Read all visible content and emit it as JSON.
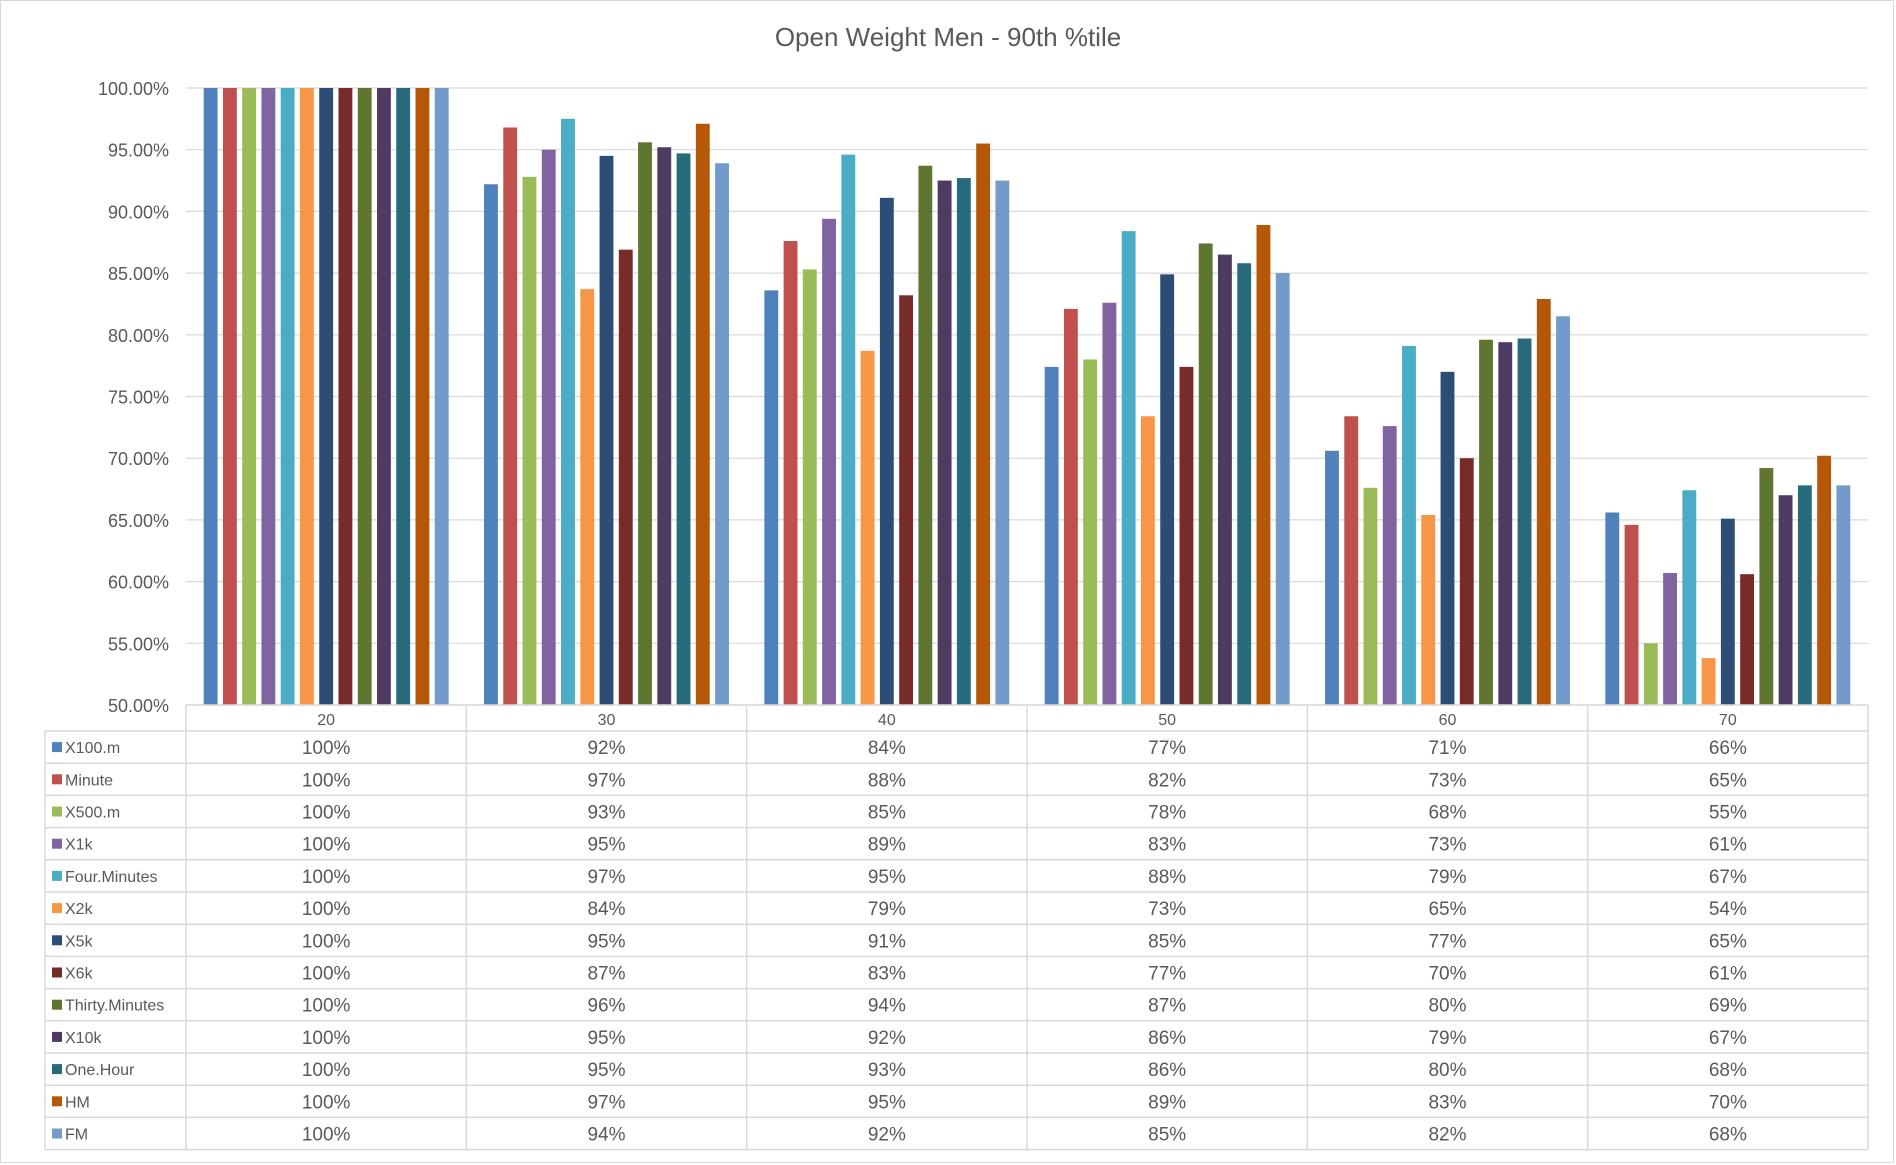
{
  "chart_data": {
    "type": "bar",
    "title": "Open Weight Men - 90th %tile",
    "xlabel": "",
    "ylabel": "",
    "ylim": [
      0.5,
      1.0
    ],
    "yticks": [
      0.5,
      0.55,
      0.6,
      0.65,
      0.7,
      0.75,
      0.8,
      0.85,
      0.9,
      0.95,
      1.0
    ],
    "ytick_labels": [
      "50.00%",
      "55.00%",
      "60.00%",
      "65.00%",
      "70.00%",
      "75.00%",
      "80.00%",
      "85.00%",
      "90.00%",
      "95.00%",
      "100.00%"
    ],
    "grid": true,
    "legend": "data-table",
    "categories": [
      "20",
      "30",
      "40",
      "50",
      "60",
      "70"
    ],
    "series": [
      {
        "name": "X100.m",
        "color": "#4f81bd",
        "values": [
          1.0,
          0.922,
          0.836,
          0.774,
          0.706,
          0.656
        ],
        "labels": [
          "100%",
          "92%",
          "84%",
          "77%",
          "71%",
          "66%"
        ]
      },
      {
        "name": "Minute",
        "color": "#c0504d",
        "values": [
          1.0,
          0.968,
          0.876,
          0.821,
          0.734,
          0.646
        ],
        "labels": [
          "100%",
          "97%",
          "88%",
          "82%",
          "73%",
          "65%"
        ]
      },
      {
        "name": "X500.m",
        "color": "#9bbb59",
        "values": [
          1.0,
          0.928,
          0.853,
          0.78,
          0.676,
          0.55
        ],
        "labels": [
          "100%",
          "93%",
          "85%",
          "78%",
          "68%",
          "55%"
        ]
      },
      {
        "name": "X1k",
        "color": "#8064a2",
        "values": [
          1.0,
          0.95,
          0.894,
          0.826,
          0.726,
          0.607
        ],
        "labels": [
          "100%",
          "95%",
          "89%",
          "83%",
          "73%",
          "61%"
        ]
      },
      {
        "name": "Four.Minutes",
        "color": "#4bacc6",
        "values": [
          1.0,
          0.975,
          0.946,
          0.884,
          0.791,
          0.674
        ],
        "labels": [
          "100%",
          "97%",
          "95%",
          "88%",
          "79%",
          "67%"
        ]
      },
      {
        "name": "X2k",
        "color": "#f79646",
        "values": [
          1.0,
          0.837,
          0.787,
          0.734,
          0.654,
          0.538
        ],
        "labels": [
          "100%",
          "84%",
          "79%",
          "73%",
          "65%",
          "54%"
        ]
      },
      {
        "name": "X5k",
        "color": "#2c4d75",
        "values": [
          1.0,
          0.945,
          0.911,
          0.849,
          0.77,
          0.651
        ],
        "labels": [
          "100%",
          "95%",
          "91%",
          "85%",
          "77%",
          "65%"
        ]
      },
      {
        "name": "X6k",
        "color": "#772c2a",
        "values": [
          1.0,
          0.869,
          0.832,
          0.774,
          0.7,
          0.606
        ],
        "labels": [
          "100%",
          "87%",
          "83%",
          "77%",
          "70%",
          "61%"
        ]
      },
      {
        "name": "Thirty.Minutes",
        "color": "#5f7530",
        "values": [
          1.0,
          0.956,
          0.937,
          0.874,
          0.796,
          0.692
        ],
        "labels": [
          "100%",
          "96%",
          "94%",
          "87%",
          "80%",
          "69%"
        ]
      },
      {
        "name": "X10k",
        "color": "#4d3b62",
        "values": [
          1.0,
          0.952,
          0.925,
          0.865,
          0.794,
          0.67
        ],
        "labels": [
          "100%",
          "95%",
          "92%",
          "86%",
          "79%",
          "67%"
        ]
      },
      {
        "name": "One.Hour",
        "color": "#276a7c",
        "values": [
          1.0,
          0.947,
          0.927,
          0.858,
          0.797,
          0.678
        ],
        "labels": [
          "100%",
          "95%",
          "93%",
          "86%",
          "80%",
          "68%"
        ]
      },
      {
        "name": "HM",
        "color": "#b65708",
        "values": [
          1.0,
          0.971,
          0.955,
          0.889,
          0.829,
          0.702
        ],
        "labels": [
          "100%",
          "97%",
          "95%",
          "89%",
          "83%",
          "70%"
        ]
      },
      {
        "name": "FM",
        "color": "#729aca",
        "values": [
          1.0,
          0.939,
          0.925,
          0.85,
          0.815,
          0.678
        ],
        "labels": [
          "100%",
          "94%",
          "92%",
          "85%",
          "82%",
          "68%"
        ]
      }
    ]
  }
}
